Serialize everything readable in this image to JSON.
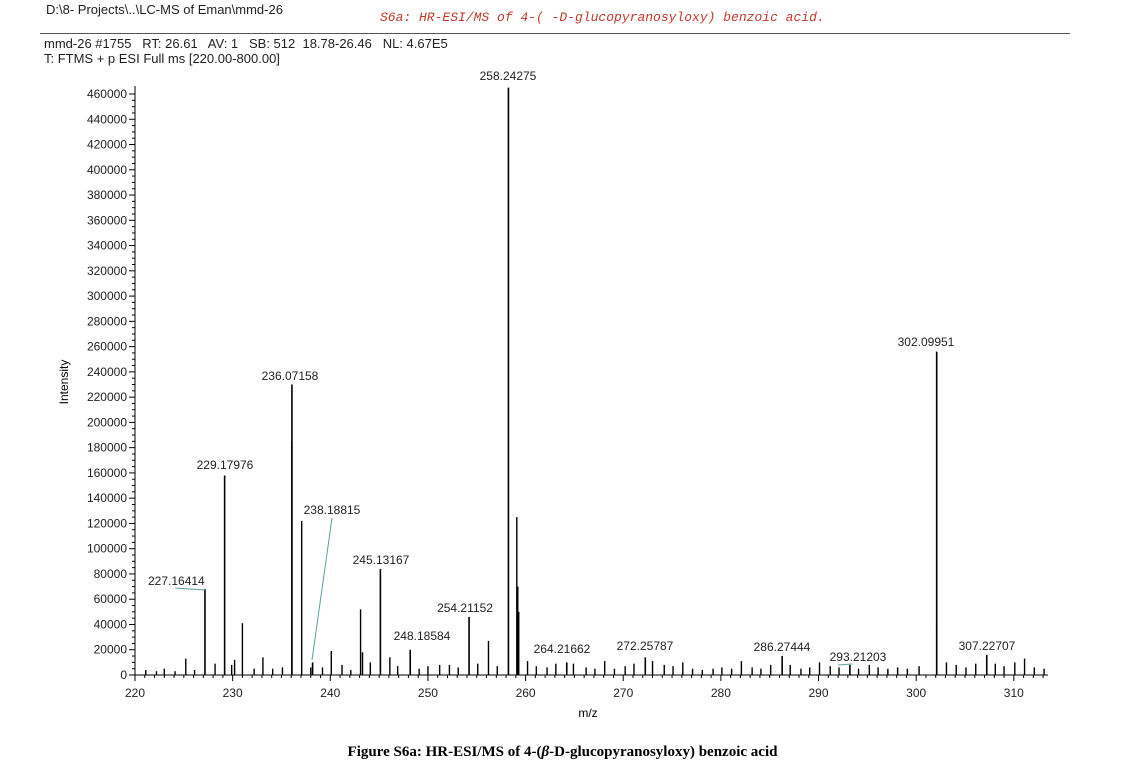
{
  "header": {
    "path": "D:\\8- Projects\\..\\LC-MS of Eman\\mmd-26",
    "annotation": "S6a: HR-ESI/MS of 4-( -D-glucopyranosyloxy) benzoic acid.",
    "scan_info": "mmd-26 #1755   RT: 26.61   AV: 1   SB: 512  18.78-26.46   NL: 4.67E5",
    "filter": "T: FTMS + p ESI Full ms [220.00-800.00]"
  },
  "colors": {
    "annotation": "#c0392b",
    "leader_line": "#5aa0a0",
    "peaks": "#000000"
  },
  "chart_data": {
    "type": "bar",
    "title": "",
    "xlabel": "m/z",
    "ylabel": "Intensity",
    "xlim": [
      220,
      313.5
    ],
    "ylim": [
      0,
      460000
    ],
    "x_ticks": [
      220,
      230,
      240,
      250,
      260,
      270,
      280,
      290,
      300,
      310
    ],
    "y_ticks": [
      0,
      20000,
      40000,
      60000,
      80000,
      100000,
      120000,
      140000,
      160000,
      180000,
      200000,
      220000,
      240000,
      260000,
      280000,
      300000,
      320000,
      340000,
      360000,
      380000,
      400000,
      420000,
      440000,
      460000
    ],
    "labeled_peaks": [
      {
        "mz": 227.16414,
        "intensity": 68000,
        "label": "227.16414"
      },
      {
        "mz": 229.17976,
        "intensity": 158000,
        "label": "229.17976"
      },
      {
        "mz": 236.07158,
        "intensity": 230000,
        "label": "236.07158"
      },
      {
        "mz": 238.18815,
        "intensity": 10000,
        "label": "238.18815"
      },
      {
        "mz": 245.13167,
        "intensity": 84000,
        "label": "245.13167"
      },
      {
        "mz": 248.18584,
        "intensity": 20000,
        "label": "248.18584"
      },
      {
        "mz": 254.21152,
        "intensity": 46000,
        "label": "254.21152"
      },
      {
        "mz": 258.24275,
        "intensity": 465000,
        "label": "258.24275"
      },
      {
        "mz": 264.21662,
        "intensity": 10000,
        "label": "264.21662"
      },
      {
        "mz": 272.25787,
        "intensity": 14000,
        "label": "272.25787"
      },
      {
        "mz": 286.27444,
        "intensity": 15000,
        "label": "286.27444"
      },
      {
        "mz": 293.21203,
        "intensity": 8000,
        "label": "293.21203"
      },
      {
        "mz": 302.09951,
        "intensity": 256000,
        "label": "302.09951"
      },
      {
        "mz": 307.22707,
        "intensity": 16000,
        "label": "307.22707"
      }
    ],
    "other_peaks": [
      [
        221.1,
        4000
      ],
      [
        222.2,
        3000
      ],
      [
        223.0,
        5000
      ],
      [
        224.1,
        3000
      ],
      [
        225.2,
        13000
      ],
      [
        226.1,
        4000
      ],
      [
        228.2,
        9000
      ],
      [
        229.9,
        8000
      ],
      [
        230.2,
        12000
      ],
      [
        231.0,
        41000
      ],
      [
        232.2,
        5000
      ],
      [
        233.1,
        14000
      ],
      [
        234.1,
        5000
      ],
      [
        235.1,
        6000
      ],
      [
        236.06,
        185000
      ],
      [
        237.07,
        122000
      ],
      [
        238.0,
        6000
      ],
      [
        239.2,
        6000
      ],
      [
        240.1,
        19000
      ],
      [
        241.2,
        8000
      ],
      [
        242.1,
        4000
      ],
      [
        243.1,
        52000
      ],
      [
        243.3,
        18000
      ],
      [
        244.1,
        10000
      ],
      [
        246.1,
        14000
      ],
      [
        246.9,
        7000
      ],
      [
        249.1,
        5000
      ],
      [
        250.0,
        7000
      ],
      [
        251.2,
        8000
      ],
      [
        252.2,
        8000
      ],
      [
        253.1,
        6000
      ],
      [
        255.1,
        9000
      ],
      [
        256.2,
        27000
      ],
      [
        257.1,
        7000
      ],
      [
        259.1,
        125000
      ],
      [
        259.2,
        70000
      ],
      [
        259.3,
        50000
      ],
      [
        260.2,
        11000
      ],
      [
        261.1,
        7000
      ],
      [
        262.2,
        6000
      ],
      [
        263.1,
        9000
      ],
      [
        264.9,
        9000
      ],
      [
        266.2,
        6000
      ],
      [
        267.1,
        5000
      ],
      [
        268.1,
        11000
      ],
      [
        269.1,
        5000
      ],
      [
        270.2,
        7000
      ],
      [
        271.1,
        9000
      ],
      [
        273.0,
        11000
      ],
      [
        274.2,
        8000
      ],
      [
        275.1,
        7000
      ],
      [
        276.1,
        10000
      ],
      [
        277.1,
        5000
      ],
      [
        278.1,
        4000
      ],
      [
        279.2,
        5000
      ],
      [
        280.1,
        6000
      ],
      [
        281.1,
        5000
      ],
      [
        282.1,
        11000
      ],
      [
        283.2,
        6000
      ],
      [
        284.1,
        5000
      ],
      [
        285.1,
        8000
      ],
      [
        287.1,
        8000
      ],
      [
        288.2,
        5000
      ],
      [
        289.1,
        6000
      ],
      [
        290.1,
        10000
      ],
      [
        291.2,
        7000
      ],
      [
        292.1,
        6000
      ],
      [
        294.1,
        5000
      ],
      [
        295.2,
        8000
      ],
      [
        296.1,
        6000
      ],
      [
        297.1,
        5000
      ],
      [
        298.1,
        6000
      ],
      [
        299.1,
        5000
      ],
      [
        300.3,
        7000
      ],
      [
        302.1,
        40000
      ],
      [
        303.1,
        10000
      ],
      [
        304.1,
        8000
      ],
      [
        305.1,
        6000
      ],
      [
        306.1,
        9000
      ],
      [
        308.1,
        9000
      ],
      [
        309.0,
        7000
      ],
      [
        310.1,
        10000
      ],
      [
        311.1,
        13000
      ],
      [
        312.1,
        6000
      ],
      [
        313.1,
        5000
      ]
    ]
  },
  "caption": {
    "prefix": "Figure S6a: HR-ESI/MS of 4-(",
    "symbol": "β",
    "suffix": "-D-glucopyranosyloxy) benzoic acid"
  }
}
